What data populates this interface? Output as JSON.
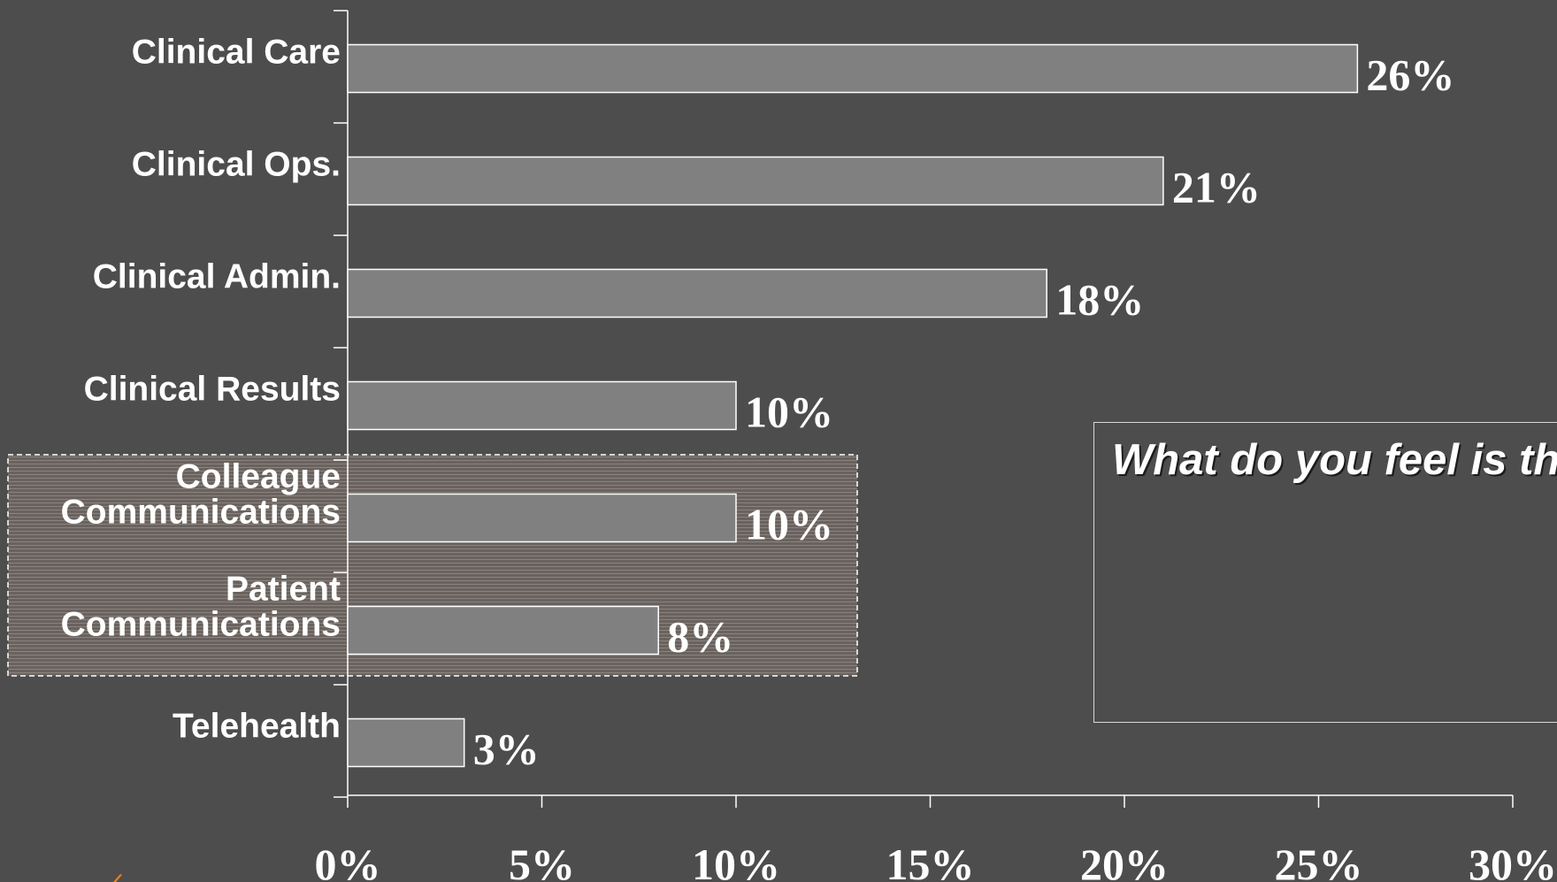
{
  "chart_data": {
    "type": "bar",
    "orientation": "horizontal",
    "categories": [
      "Clinical Care",
      "Clinical Ops.",
      "Clinical Admin.",
      "Clinical Results",
      "Colleague\nCommunications",
      "Patient\nCommunications",
      "Telehealth"
    ],
    "values": [
      26,
      21,
      18,
      10,
      10,
      8,
      3
    ],
    "data_labels": [
      "26%",
      "21%",
      "18%",
      "10%",
      "10%",
      "8%",
      "3%"
    ],
    "x_ticks": [
      "0%",
      "5%",
      "10%",
      "15%",
      "20%",
      "25%",
      "30%"
    ],
    "xlim": [
      0,
      30
    ],
    "grid": false,
    "highlighted_categories": [
      "Colleague\nCommunications",
      "Patient\nCommunications"
    ]
  },
  "callout": {
    "text": "What do you feel is\nthe most critical\ncatalyst to driving\nhigher MD adoption\ne-health offerings?"
  },
  "colors": {
    "background": "#4d4d4d",
    "bar_fill": "#808080",
    "bar_stroke": "#ffffff",
    "text": "#ffffff",
    "highlight_box": "#6b6460",
    "accent": "#e8821e"
  }
}
